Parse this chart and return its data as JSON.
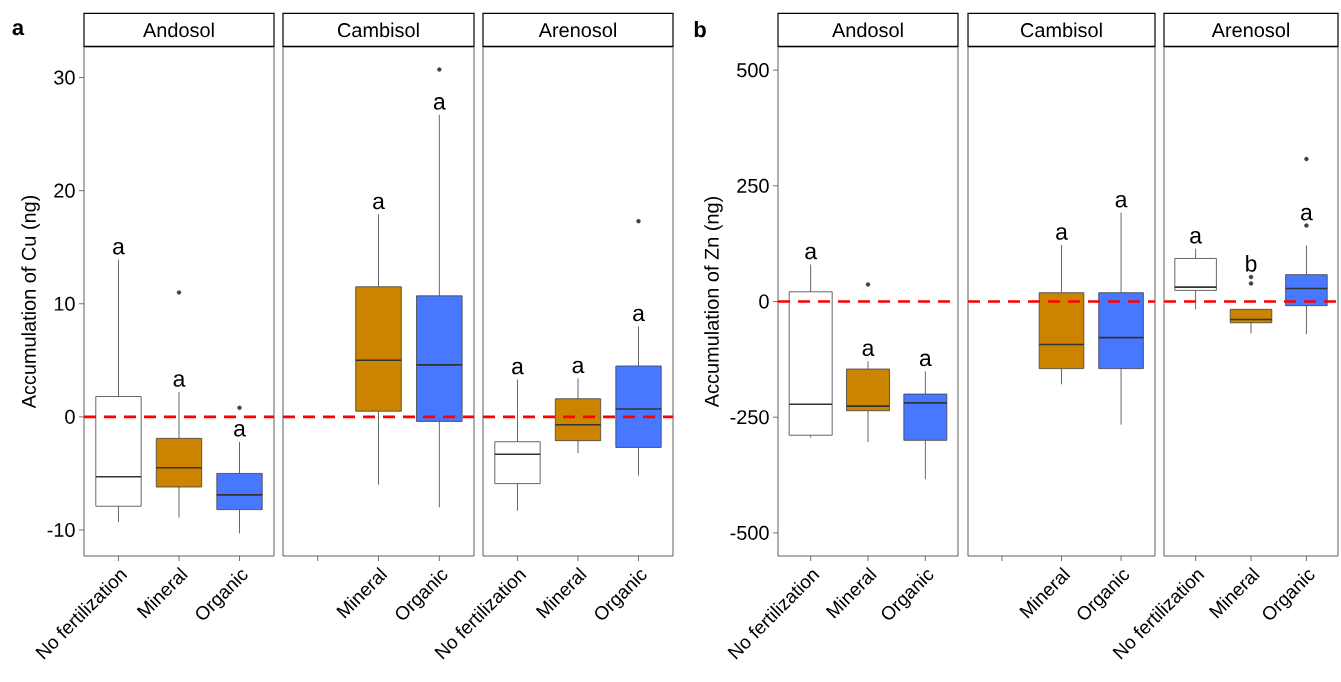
{
  "chart_data": [
    {
      "type": "box",
      "title": "Andosol",
      "ylabel": "Accumulation of Cu (ng)",
      "categories": [
        "No fertilization",
        "Mineral",
        "Organic"
      ],
      "boxes": [
        {
          "low": -9.3,
          "q1": -7.9,
          "median": -5.3,
          "q3": 1.8,
          "high": 13.9
        },
        {
          "low": -8.9,
          "q1": -6.2,
          "median": -4.5,
          "q3": -1.9,
          "high": 2.2,
          "outliers": [
            11.0
          ]
        },
        {
          "low": -10.3,
          "q1": -8.2,
          "median": -6.9,
          "q3": -5.0,
          "high": -2.2,
          "outliers": [
            0.8
          ]
        }
      ],
      "colors": [
        "#ffffff",
        "#cc8400",
        "#4878ff"
      ],
      "ylim": [
        -12.3,
        32.7
      ],
      "yticks": [
        -10,
        0,
        10,
        20,
        30
      ],
      "ref_lines": [
        {
          "axis": "y",
          "value": 0,
          "color": "#ff0000",
          "line_style": "dashed"
        }
      ],
      "annotations": [
        "a",
        "a",
        "a",
        "a"
      ]
    },
    {
      "type": "box",
      "title": "Cambisol",
      "categories": [
        null,
        "Mineral",
        "Organic"
      ],
      "boxes": [
        null,
        {
          "low": -6.0,
          "q1": 0.5,
          "median": 5.0,
          "q3": 11.5,
          "high": 17.9
        },
        {
          "low": -8.0,
          "q1": -0.4,
          "median": 4.6,
          "q3": 10.7,
          "high": 26.7,
          "outliers": [
            30.7
          ]
        }
      ],
      "colors": [
        null,
        "#cc8400",
        "#4878ff"
      ],
      "ylim": [
        -12.3,
        32.7
      ],
      "yticks": [
        -10,
        0,
        10,
        20,
        30
      ],
      "tick_labels": "x",
      "ref_lines": [
        {
          "axis": "y",
          "value": 0,
          "color": "#ff0000",
          "line_style": "dashed"
        }
      ],
      "annotations": [
        "a",
        "a"
      ]
    },
    {
      "type": "box",
      "title": "Arenosol",
      "categories": [
        "No fertilization",
        "Mineral",
        "Organic"
      ],
      "boxes": [
        {
          "low": -8.3,
          "q1": -5.9,
          "median": -3.3,
          "q3": -2.2,
          "high": 3.3
        },
        {
          "low": -3.2,
          "q1": -2.1,
          "median": -0.7,
          "q3": 1.6,
          "high": 3.4
        },
        {
          "low": -5.2,
          "q1": -2.7,
          "median": 0.7,
          "q3": 4.5,
          "high": 8.0,
          "outliers": [
            17.3
          ]
        }
      ],
      "colors": [
        "#ffffff",
        "#cc8400",
        "#4878ff"
      ],
      "ylim": [
        -12.3,
        32.7
      ],
      "yticks": [
        -10,
        0,
        10,
        20,
        30
      ],
      "tick_labels": "x",
      "ref_lines": [
        {
          "axis": "y",
          "value": 0,
          "color": "#ff0000",
          "line_style": "dashed"
        }
      ],
      "annotations": [
        "a",
        "a",
        "a"
      ]
    },
    {
      "type": "box",
      "title": "Andosol",
      "ylabel": "Accumulation of Zn (ng)",
      "categories": [
        "No fertilization",
        "Mineral",
        "Organic"
      ],
      "boxes": [
        {
          "low": -294,
          "q1": -289,
          "median": -222,
          "q3": 21,
          "high": 80
        },
        {
          "low": -304,
          "q1": -236,
          "median": -226,
          "q3": -146,
          "high": -129,
          "outliers": [
            37
          ]
        },
        {
          "low": -384,
          "q1": -300,
          "median": -219,
          "q3": -200,
          "high": -151
        }
      ],
      "colors": [
        "#ffffff",
        "#cc8400",
        "#4878ff"
      ],
      "ylim": [
        -550,
        550
      ],
      "yticks": [
        -500,
        -250,
        0,
        250,
        500
      ],
      "ref_lines": [
        {
          "axis": "y",
          "value": 0,
          "color": "#ff0000",
          "line_style": "dashed"
        }
      ],
      "annotations": [
        "b",
        "a",
        "a",
        "a"
      ]
    },
    {
      "type": "box",
      "title": "Cambisol",
      "categories": [
        null,
        "Mineral",
        "Organic"
      ],
      "boxes": [
        null,
        {
          "low": -179,
          "q1": -145,
          "median": -93,
          "q3": 19,
          "high": 122
        },
        {
          "low": -266,
          "q1": -145,
          "median": -78,
          "q3": 19,
          "high": 192
        }
      ],
      "colors": [
        null,
        "#cc8400",
        "#4878ff"
      ],
      "ylim": [
        -550,
        550
      ],
      "yticks": [
        -500,
        -250,
        0,
        250,
        500
      ],
      "tick_labels": "x",
      "ref_lines": [
        {
          "axis": "y",
          "value": 0,
          "color": "#ff0000",
          "line_style": "dashed"
        }
      ],
      "annotations": [
        "a",
        "a"
      ]
    },
    {
      "type": "box",
      "title": "Arenosol",
      "categories": [
        "No fertilization",
        "Mineral",
        "Organic"
      ],
      "boxes": [
        {
          "low": -17,
          "q1": 24,
          "median": 31,
          "q3": 93,
          "high": 114
        },
        {
          "low": -69,
          "q1": -46,
          "median": -39,
          "q3": -17,
          "high": -17,
          "outliers": [
            39,
            53
          ]
        },
        {
          "low": -71,
          "q1": -9,
          "median": 28,
          "q3": 58,
          "high": 121,
          "outliers": [
            164,
            308
          ]
        }
      ],
      "colors": [
        "#ffffff",
        "#cc8400",
        "#4878ff"
      ],
      "ylim": [
        -550,
        550
      ],
      "yticks": [
        -500,
        -250,
        0,
        250,
        500
      ],
      "tick_labels": "x",
      "ref_lines": [
        {
          "axis": "y",
          "value": 0,
          "color": "#ff0000",
          "line_style": "dashed"
        }
      ],
      "annotations": [
        "a",
        "b",
        "a"
      ]
    }
  ]
}
